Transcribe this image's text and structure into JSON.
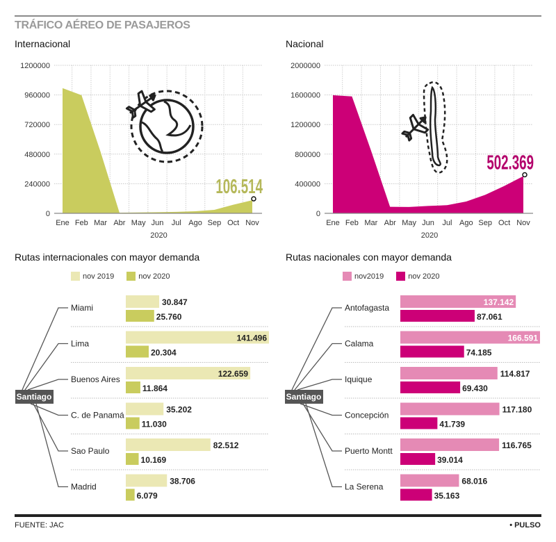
{
  "header": {
    "title": "TRÁFICO AÉREO DE PASAJEROS"
  },
  "colors": {
    "intl_2020": "#c9cc5e",
    "intl_2019": "#ebe8b4",
    "intl_area": "#c9cc5e",
    "intl_label": "#b5b85a",
    "nac_2020": "#cc0077",
    "nac_2019": "#e58ab5",
    "nac_area": "#cc0077",
    "nac_label": "#b3006b",
    "santiago_box": "#555555"
  },
  "chart_data": [
    {
      "id": "internacional",
      "type": "area",
      "title": "Internacional",
      "xlabel": "2020",
      "ylabel": "",
      "categories": [
        "Ene",
        "Feb",
        "Mar",
        "Abr",
        "May",
        "Jun",
        "Jul",
        "Ago",
        "Sep",
        "Oct",
        "Nov"
      ],
      "values": [
        1015000,
        958000,
        500000,
        5000,
        7000,
        9000,
        12000,
        17000,
        28000,
        70000,
        106514
      ],
      "yticks": [
        0,
        240000,
        480000,
        720000,
        960000,
        1200000
      ],
      "ytick_labels": [
        "0",
        "240000",
        "480000",
        "720000",
        "960000",
        "1200000"
      ],
      "ylim": [
        0,
        1200000
      ],
      "grid": true,
      "annotation": {
        "label": "106.514",
        "category": "Nov",
        "value": 106514
      },
      "icon": "plane-around-globe-icon"
    },
    {
      "id": "nacional",
      "type": "area",
      "title": "Nacional",
      "xlabel": "2020",
      "ylabel": "",
      "categories": [
        "Ene",
        "Feb",
        "Mar",
        "Abr",
        "May",
        "Jun",
        "Jul",
        "Ago",
        "Sep",
        "Oct",
        "Nov"
      ],
      "values": [
        1596000,
        1580000,
        850000,
        88000,
        86000,
        100000,
        110000,
        160000,
        250000,
        370000,
        502369
      ],
      "yticks": [
        0,
        400000,
        800000,
        1200000,
        1600000,
        2000000
      ],
      "ytick_labels": [
        "0",
        "400000",
        "800000",
        "1200000",
        "1600000",
        "2000000"
      ],
      "ylim": [
        0,
        2000000
      ],
      "grid": true,
      "annotation": {
        "label": "502.369",
        "category": "Nov",
        "value": 502369
      },
      "icon": "plane-chile-map-icon"
    },
    {
      "id": "rutas_internacionales",
      "type": "bar",
      "title": "Rutas internacionales con mayor demanda",
      "origin": "Santiago",
      "legend": [
        "nov 2019",
        "nov 2020"
      ],
      "categories": [
        "Miami",
        "Lima",
        "Buenos Aires",
        "C. de Panamá",
        "Sao Paulo",
        "Madrid"
      ],
      "series": [
        {
          "name": "nov 2019",
          "values": [
            30847,
            141496,
            122659,
            35202,
            82512,
            38706
          ],
          "labels": [
            "30.847",
            "141.496",
            "122.659",
            "35.202",
            "82.512",
            "38.706"
          ]
        },
        {
          "name": "nov 2020",
          "values": [
            25760,
            20304,
            11864,
            11030,
            10169,
            6079
          ],
          "labels": [
            "25.760",
            "20.304",
            "11.864",
            "11.030",
            "10.169",
            "6.079"
          ]
        }
      ]
    },
    {
      "id": "rutas_nacionales",
      "type": "bar",
      "title": "Rutas nacionales con mayor demanda",
      "origin": "Santiago",
      "legend": [
        "nov2019",
        "nov 2020"
      ],
      "categories": [
        "Antofagasta",
        "Calama",
        "Iquique",
        "Concepción",
        "Puerto Montt",
        "La Serena"
      ],
      "series": [
        {
          "name": "nov2019",
          "values": [
            137142,
            166591,
            114817,
            117180,
            116765,
            68016
          ],
          "labels": [
            "137.142",
            "166.591",
            "114.817",
            "117.180",
            "116.765",
            "68.016"
          ]
        },
        {
          "name": "nov 2020",
          "values": [
            87061,
            74185,
            69430,
            41739,
            39014,
            35163
          ],
          "labels": [
            "87.061",
            "74.185",
            "69.430",
            "41.739",
            "39.014",
            "35.163"
          ]
        }
      ]
    }
  ],
  "footer": {
    "source": "FUENTE: JAC",
    "brand": "• PULSO"
  }
}
